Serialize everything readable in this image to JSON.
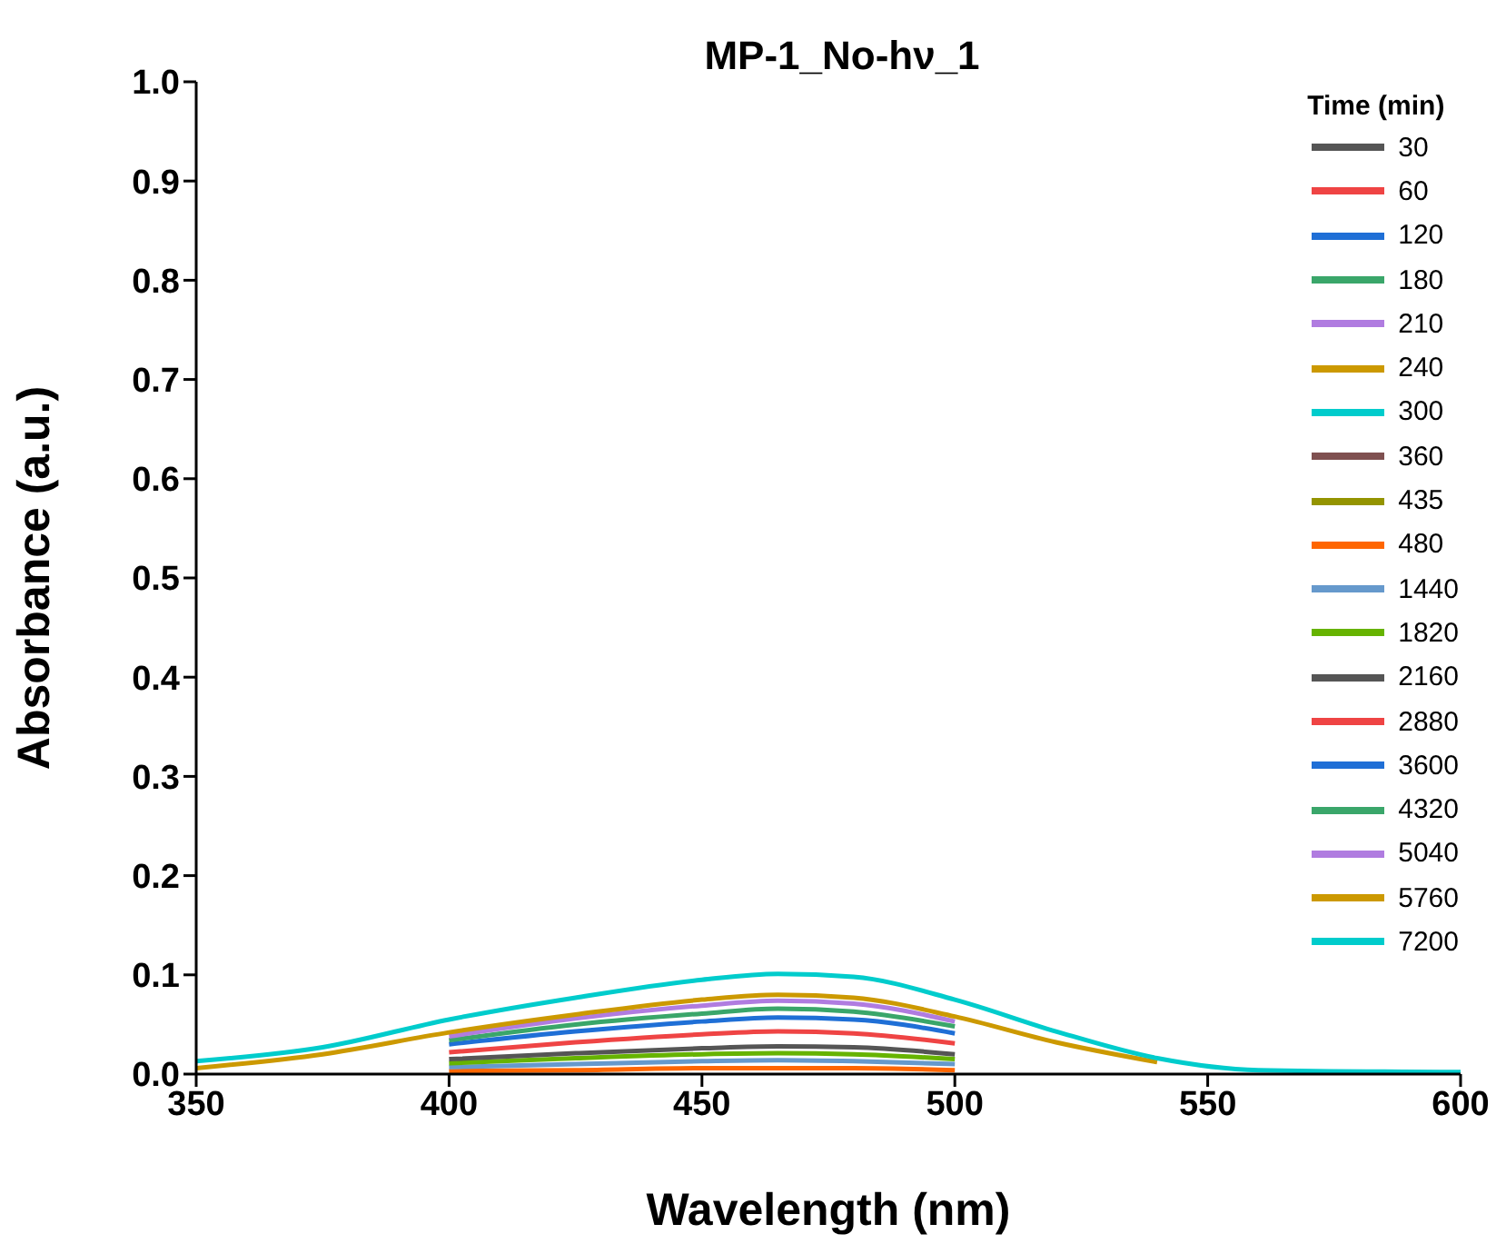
{
  "chart_data": {
    "type": "line",
    "title": "MP-1_No-hν_1",
    "xlabel": "Wavelength (nm)",
    "ylabel": "Absorbance (a.u.)",
    "legend_title": "Time (min)",
    "legend": "top right",
    "grid": false,
    "marker": "none",
    "line_style": "solid",
    "x": [
      350,
      375,
      400,
      425,
      450,
      465,
      480,
      500,
      520,
      540,
      560,
      600
    ],
    "xlim": [
      350,
      600
    ],
    "xticks": [
      350,
      400,
      450,
      500,
      550,
      600
    ],
    "ylim": [
      0,
      1
    ],
    "yticks": [
      {
        "value": 0,
        "label": "0.0"
      },
      {
        "value": 0.1,
        "label": "0.1"
      },
      {
        "value": 0.2,
        "label": "0.2"
      },
      {
        "value": 0.3,
        "label": "0.3"
      },
      {
        "value": 0.4,
        "label": "0.4"
      },
      {
        "value": 0.5,
        "label": "0.5"
      },
      {
        "value": 0.6,
        "label": "0.6"
      },
      {
        "value": 0.7,
        "label": "0.7"
      },
      {
        "value": 0.8,
        "label": "0.8"
      },
      {
        "value": 0.9,
        "label": "0.9"
      },
      {
        "value": 1,
        "label": "1.0"
      }
    ],
    "series": [
      {
        "name": "30",
        "color": "#555555",
        "values": [
          null,
          null,
          null,
          null,
          null,
          null,
          null,
          null,
          null,
          null,
          null,
          null
        ]
      },
      {
        "name": "60",
        "color": "#ef4444",
        "values": [
          null,
          null,
          null,
          null,
          null,
          null,
          null,
          null,
          null,
          null,
          null,
          null
        ]
      },
      {
        "name": "120",
        "color": "#1f6fd6",
        "values": [
          null,
          null,
          null,
          null,
          null,
          null,
          null,
          null,
          null,
          null,
          null,
          null
        ]
      },
      {
        "name": "180",
        "color": "#3aa66a",
        "values": [
          null,
          null,
          null,
          null,
          null,
          null,
          null,
          null,
          null,
          null,
          null,
          null
        ]
      },
      {
        "name": "210",
        "color": "#b07ce0",
        "values": [
          null,
          null,
          null,
          null,
          null,
          null,
          null,
          null,
          null,
          null,
          null,
          null
        ]
      },
      {
        "name": "240",
        "color": "#cc9900",
        "values": [
          null,
          null,
          null,
          null,
          null,
          null,
          null,
          null,
          null,
          null,
          null,
          null
        ]
      },
      {
        "name": "300",
        "color": "#00cccc",
        "values": [
          null,
          null,
          null,
          null,
          null,
          null,
          null,
          null,
          null,
          null,
          null,
          null
        ]
      },
      {
        "name": "360",
        "color": "#7f5050",
        "values": [
          null,
          null,
          null,
          null,
          null,
          null,
          null,
          null,
          null,
          null,
          null,
          null
        ]
      },
      {
        "name": "435",
        "color": "#949400",
        "values": [
          null,
          null,
          null,
          null,
          null,
          null,
          null,
          null,
          null,
          null,
          null,
          null
        ]
      },
      {
        "name": "480",
        "color": "#ff6600",
        "values": [
          null,
          null,
          0.003,
          0.004,
          0.006,
          0.006,
          0.006,
          0.004,
          null,
          null,
          null,
          null
        ]
      },
      {
        "name": "1440",
        "color": "#6699cc",
        "values": [
          null,
          null,
          0.007,
          0.01,
          0.013,
          0.014,
          0.013,
          0.01,
          null,
          null,
          null,
          null
        ]
      },
      {
        "name": "1820",
        "color": "#66b300",
        "values": [
          null,
          null,
          0.011,
          0.016,
          0.02,
          0.021,
          0.02,
          0.015,
          null,
          null,
          null,
          null
        ]
      },
      {
        "name": "2160",
        "color": "#555555",
        "values": [
          null,
          null,
          0.015,
          0.021,
          0.026,
          0.028,
          0.027,
          0.02,
          null,
          null,
          null,
          null
        ]
      },
      {
        "name": "2880",
        "color": "#ef4444",
        "values": [
          null,
          null,
          0.022,
          0.032,
          0.04,
          0.043,
          0.041,
          0.031,
          null,
          null,
          null,
          null
        ]
      },
      {
        "name": "3600",
        "color": "#1f6fd6",
        "values": [
          null,
          null,
          0.03,
          0.043,
          0.053,
          0.057,
          0.055,
          0.041,
          null,
          null,
          null,
          null
        ]
      },
      {
        "name": "4320",
        "color": "#3aa66a",
        "values": [
          null,
          null,
          0.034,
          0.05,
          0.061,
          0.066,
          0.063,
          0.048,
          null,
          null,
          null,
          null
        ]
      },
      {
        "name": "5040",
        "color": "#b07ce0",
        "values": [
          null,
          null,
          0.038,
          0.056,
          0.069,
          0.074,
          0.071,
          0.053,
          null,
          null,
          null,
          null
        ]
      },
      {
        "name": "5760",
        "color": "#cc9900",
        "values": [
          0.006,
          0.02,
          0.042,
          0.06,
          0.075,
          0.08,
          0.077,
          0.058,
          0.032,
          0.012,
          null,
          null
        ]
      },
      {
        "name": "7200",
        "color": "#00cccc",
        "values": [
          0.013,
          0.027,
          0.055,
          0.077,
          0.095,
          0.101,
          0.098,
          0.075,
          0.043,
          0.016,
          0.004,
          0.002
        ]
      }
    ]
  }
}
